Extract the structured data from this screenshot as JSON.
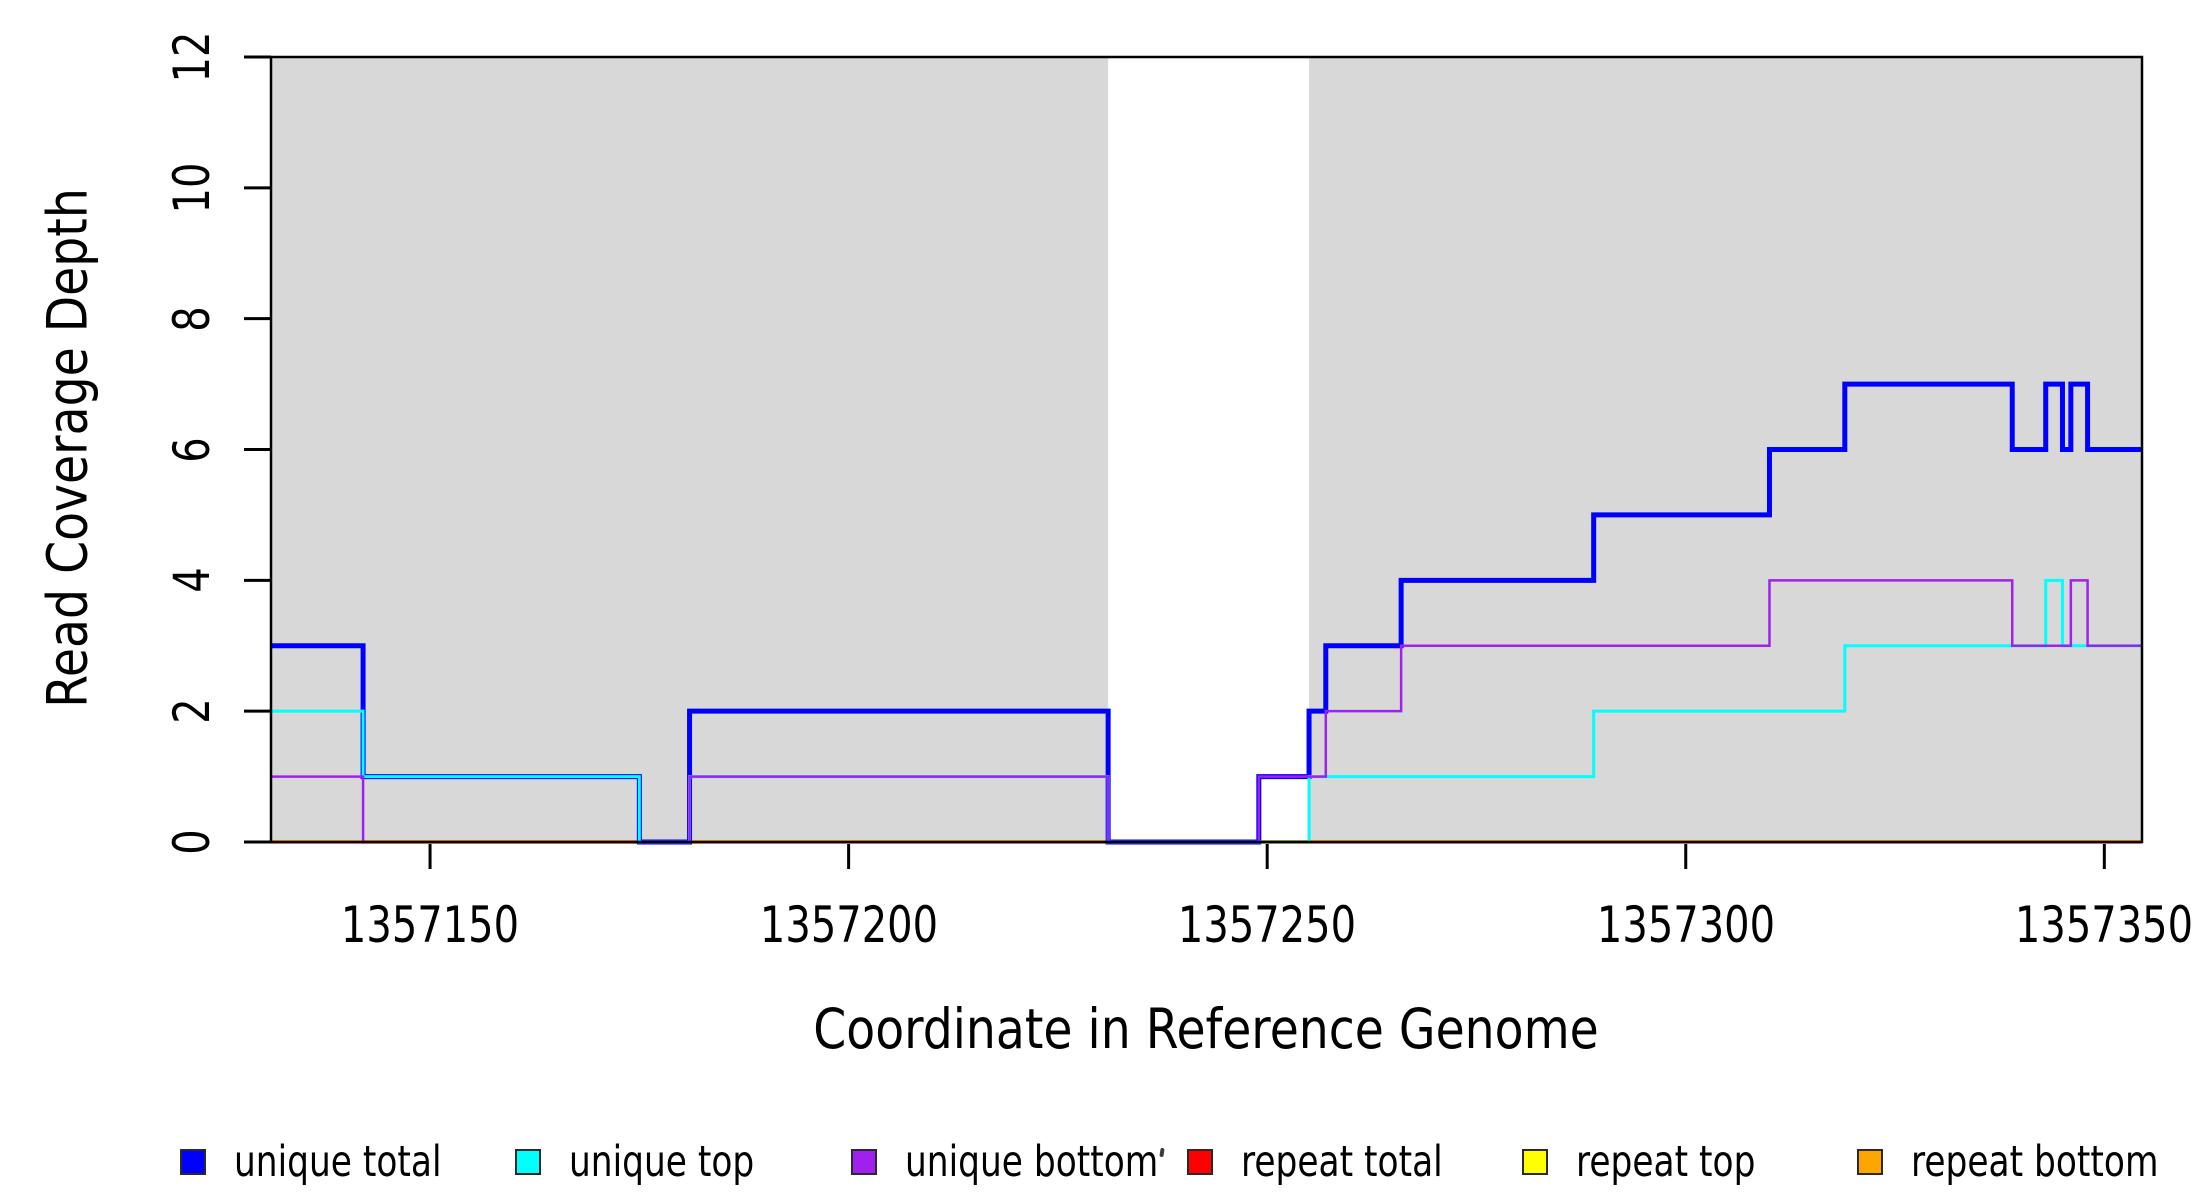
{
  "figure": {
    "background": "#FFFFFF",
    "plot_border_color": "#000000",
    "shaded_region_color": "#D8D8D8"
  },
  "chart_data": {
    "type": "line",
    "subtype": "step-coverage",
    "title": "",
    "xlabel": "Coordinate in Reference Genome",
    "ylabel": "Read Coverage Depth",
    "xlim": [
      1357131,
      1357354.5
    ],
    "ylim": [
      0,
      12
    ],
    "xticks": [
      "1357150",
      "1357200",
      "1357250",
      "1357300",
      "1357350"
    ],
    "xtick_values": [
      1357150,
      1357200,
      1357250,
      1357300,
      1357350
    ],
    "yticks": [
      "0",
      "2",
      "4",
      "6",
      "8",
      "10",
      "12"
    ],
    "ytick_values": [
      0,
      2,
      4,
      6,
      8,
      10,
      12
    ],
    "grid": false,
    "legend_position": "bottom",
    "shaded_regions": {
      "color": "#D8D8D8",
      "ranges": [
        [
          1357131,
          1357231
        ],
        [
          1357255,
          1357354.5
        ]
      ]
    },
    "draw_order": [
      "repeat total",
      "repeat top",
      "repeat bottom",
      "unique total",
      "unique top",
      "unique bottom"
    ],
    "series": [
      {
        "name": "unique total",
        "color": "#0000FF",
        "line_width": 5,
        "steps": [
          [
            1357131,
            3
          ],
          [
            1357142,
            1
          ],
          [
            1357175,
            0
          ],
          [
            1357181,
            2
          ],
          [
            1357231,
            0
          ],
          [
            1357249,
            1
          ],
          [
            1357255,
            2
          ],
          [
            1357257,
            3
          ],
          [
            1357266,
            4
          ],
          [
            1357289,
            5
          ],
          [
            1357310,
            6
          ],
          [
            1357319,
            7
          ],
          [
            1357339,
            6
          ],
          [
            1357343,
            7
          ],
          [
            1357345,
            6
          ],
          [
            1357346,
            7
          ],
          [
            1357348,
            6
          ]
        ]
      },
      {
        "name": "unique top",
        "color": "#00FFFF",
        "line_width": 3,
        "steps": [
          [
            1357131,
            2
          ],
          [
            1357142,
            1
          ],
          [
            1357175,
            0
          ],
          [
            1357181,
            1
          ],
          [
            1357231,
            0
          ],
          [
            1357255,
            1
          ],
          [
            1357289,
            2
          ],
          [
            1357319,
            3
          ],
          [
            1357343,
            4
          ],
          [
            1357345,
            3
          ]
        ]
      },
      {
        "name": "unique bottom",
        "color": "#A020F0",
        "line_width": 2.5,
        "steps": [
          [
            1357131,
            1
          ],
          [
            1357142,
            0
          ],
          [
            1357181,
            1
          ],
          [
            1357231,
            0
          ],
          [
            1357249,
            1
          ],
          [
            1357257,
            2
          ],
          [
            1357266,
            3
          ],
          [
            1357310,
            4
          ],
          [
            1357339,
            3
          ],
          [
            1357346,
            4
          ],
          [
            1357348,
            3
          ]
        ]
      },
      {
        "name": "repeat total",
        "color": "#FF0000",
        "line_width": 3,
        "steps": [
          [
            1357131,
            0
          ]
        ]
      },
      {
        "name": "repeat top",
        "color": "#FFFF00",
        "line_width": 3,
        "steps": [
          [
            1357131,
            0
          ]
        ]
      },
      {
        "name": "repeat bottom",
        "color": "#FFA500",
        "line_width": 4,
        "steps": [
          [
            1357131,
            0
          ]
        ]
      }
    ],
    "legend": {
      "items": [
        {
          "label": "unique total",
          "color": "#0000FF"
        },
        {
          "label": "unique top",
          "color": "#00FFFF"
        },
        {
          "label": "unique bottom",
          "color": "#A020F0"
        },
        {
          "label": "repeat total",
          "color": "#FF0000"
        },
        {
          "label": "repeat top",
          "color": "#FFFF00"
        },
        {
          "label": "repeat bottom",
          "color": "#FFA500"
        }
      ]
    }
  }
}
